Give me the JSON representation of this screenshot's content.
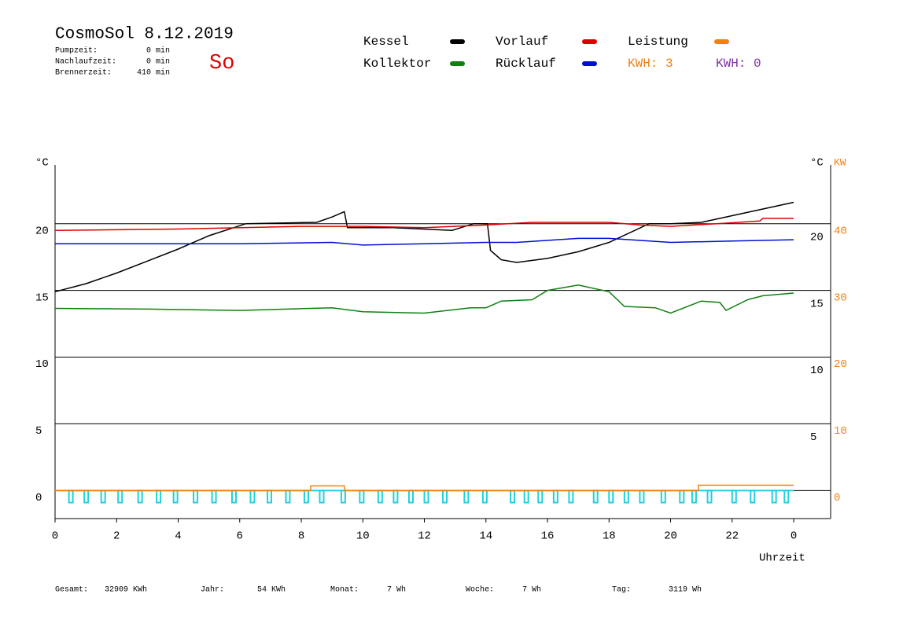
{
  "chart_data": {
    "type": "line",
    "title": "CosmoSol 8.12.2019",
    "day": "So",
    "info": [
      {
        "label": "Pumpzeit:",
        "value": "0 min"
      },
      {
        "label": "Nachlaufzeit:",
        "value": "0 min"
      },
      {
        "label": "Brennerzeit:",
        "value": "410 min"
      }
    ],
    "kwh_labels": [
      {
        "text": "KWH: 3",
        "color": "#f08010"
      },
      {
        "text": "KWH: 0",
        "color": "#8030a0"
      }
    ],
    "y_unit": "°C",
    "y_unit_right": "°C",
    "y2_unit": "KW",
    "xlabel": "Uhrzeit",
    "xlim": [
      0,
      25.2
    ],
    "xticks": [
      0,
      2,
      4,
      6,
      8,
      10,
      12,
      14,
      16,
      18,
      20,
      22,
      {
        "value": 24,
        "label": "0"
      }
    ],
    "ylim": [
      -2.1,
      24.4
    ],
    "yticks": [
      0,
      5,
      10,
      15,
      20
    ],
    "yticks_right": [
      5,
      10,
      15,
      20
    ],
    "y2lim": [
      -4.2,
      48.8
    ],
    "y2ticks": [
      0,
      10,
      20,
      30,
      40
    ],
    "y2color": "#f08010",
    "grid": true,
    "series": [
      {
        "name": "Kessel",
        "color": "#000000",
        "x": [
          0,
          1,
          2,
          3,
          4,
          5,
          6.2,
          8.5,
          9.0,
          9.4,
          9.5,
          11,
          12.9,
          13.6,
          14.05,
          14.15,
          14.5,
          15,
          16,
          17,
          18,
          19.3,
          20,
          21,
          22,
          23,
          24
        ],
        "values": [
          14.9,
          15.5,
          16.3,
          17.2,
          18.1,
          19.1,
          20.0,
          20.1,
          20.5,
          20.9,
          19.7,
          19.7,
          19.5,
          20.0,
          20.0,
          18.0,
          17.3,
          17.1,
          17.4,
          17.9,
          18.6,
          20.0,
          20.0,
          20.1,
          20.6,
          21.1,
          21.6
        ]
      },
      {
        "name": "Vorlauf",
        "color": "#e00000",
        "x": [
          0,
          4,
          8,
          10,
          12,
          14,
          15.5,
          18,
          19,
          20,
          21.5,
          22.9,
          23.0,
          24
        ],
        "values": [
          19.5,
          19.6,
          19.8,
          19.8,
          19.7,
          19.9,
          20.1,
          20.1,
          19.9,
          19.8,
          20.0,
          20.2,
          20.4,
          20.4
        ]
      },
      {
        "name": "Leistung",
        "color": "#f08010",
        "axis": "y2",
        "x": [
          0,
          8.3,
          8.31,
          9.4,
          9.41,
          20.9,
          20.91,
          24
        ],
        "values": [
          0,
          0,
          0.7,
          0.7,
          0,
          0,
          0.8,
          0.8
        ]
      },
      {
        "name": "Kollektor",
        "color": "#108010",
        "x": [
          0,
          3,
          6,
          9,
          10,
          12,
          13.5,
          14,
          14.5,
          15.5,
          16,
          17,
          18,
          18.5,
          19.5,
          20,
          21,
          21.6,
          21.8,
          22.5,
          23,
          24
        ],
        "values": [
          13.65,
          13.6,
          13.5,
          13.7,
          13.4,
          13.3,
          13.7,
          13.7,
          14.2,
          14.3,
          15.0,
          15.4,
          14.9,
          13.8,
          13.7,
          13.3,
          14.2,
          14.1,
          13.5,
          14.3,
          14.6,
          14.8
        ]
      },
      {
        "name": "Rücklauf",
        "color": "#0010d0",
        "x": [
          0,
          6,
          9,
          10,
          12,
          14,
          15,
          17,
          18,
          20,
          22,
          24
        ],
        "values": [
          18.5,
          18.5,
          18.6,
          18.4,
          18.5,
          18.6,
          18.6,
          18.9,
          18.9,
          18.6,
          18.7,
          18.8
        ]
      }
    ],
    "pulses": {
      "color": "#20d0e0",
      "x": [
        0.45,
        0.95,
        1.5,
        2.05,
        2.7,
        3.3,
        3.85,
        4.5,
        5.1,
        5.75,
        6.35,
        6.9,
        7.5,
        8.1,
        8.6,
        9.3,
        9.9,
        10.5,
        11.0,
        11.5,
        12.0,
        12.6,
        13.3,
        13.9,
        14.8,
        15.25,
        15.7,
        16.2,
        16.7,
        17.5,
        18.0,
        18.5,
        19.0,
        19.7,
        20.3,
        20.7,
        21.2,
        22.0,
        22.6,
        23.3,
        23.7
      ],
      "values": [
        -0.9,
        -0.9,
        -0.9,
        -0.9,
        -0.9,
        -0.9,
        -0.9,
        -0.9,
        -0.9,
        -0.9,
        -0.9,
        -0.9,
        -0.9,
        -0.9,
        -0.9,
        -0.9,
        -0.9,
        -0.9,
        -0.9,
        -0.9,
        -0.9,
        -0.9,
        -0.9,
        -0.9,
        -0.9,
        -0.9,
        -0.9,
        -0.9,
        -0.9,
        -0.9,
        -0.9,
        -0.9,
        -0.9,
        -0.9,
        -0.9,
        -0.9,
        -0.9,
        -0.9,
        -0.9,
        -0.9,
        -0.9
      ]
    },
    "totals": [
      {
        "label": "Gesamt:",
        "value": "32909 KWh"
      },
      {
        "label": "Jahr:",
        "value": "54 KWh"
      },
      {
        "label": "Monat:",
        "value": "7 Wh"
      },
      {
        "label": "Woche:",
        "value": "7 Wh"
      },
      {
        "label": "Tag:",
        "value": "3119 Wh"
      }
    ]
  }
}
